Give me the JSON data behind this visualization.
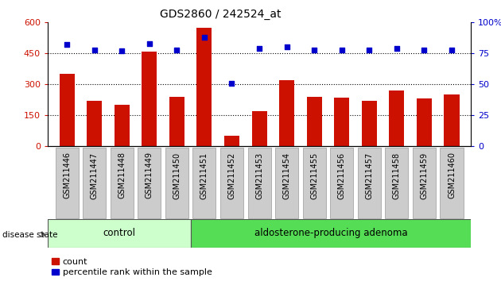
{
  "title": "GDS2860 / 242524_at",
  "samples": [
    "GSM211446",
    "GSM211447",
    "GSM211448",
    "GSM211449",
    "GSM211450",
    "GSM211451",
    "GSM211452",
    "GSM211453",
    "GSM211454",
    "GSM211455",
    "GSM211456",
    "GSM211457",
    "GSM211458",
    "GSM211459",
    "GSM211460"
  ],
  "counts": [
    350,
    220,
    200,
    460,
    240,
    575,
    50,
    170,
    320,
    240,
    235,
    220,
    270,
    230,
    250
  ],
  "percentiles": [
    82,
    78,
    77,
    83,
    78,
    88,
    51,
    79,
    80,
    78,
    78,
    78,
    79,
    78,
    78
  ],
  "ylim_left": [
    0,
    600
  ],
  "ylim_right": [
    0,
    100
  ],
  "yticks_left": [
    0,
    150,
    300,
    450,
    600
  ],
  "yticks_right": [
    0,
    25,
    50,
    75,
    100
  ],
  "ytick_labels_left": [
    "0",
    "150",
    "300",
    "450",
    "600"
  ],
  "ytick_labels_right": [
    "0",
    "25",
    "50",
    "75",
    "100%"
  ],
  "bar_color": "#cc1100",
  "dot_color": "#0000cc",
  "control_n": 5,
  "control_label": "control",
  "adenoma_label": "aldosterone-producing adenoma",
  "control_color": "#ccffcc",
  "adenoma_color": "#55dd55",
  "disease_state_label": "disease state",
  "legend_count": "count",
  "legend_percentile": "percentile rank within the sample",
  "tick_label_bg": "#cccccc",
  "tick_label_border": "#999999"
}
